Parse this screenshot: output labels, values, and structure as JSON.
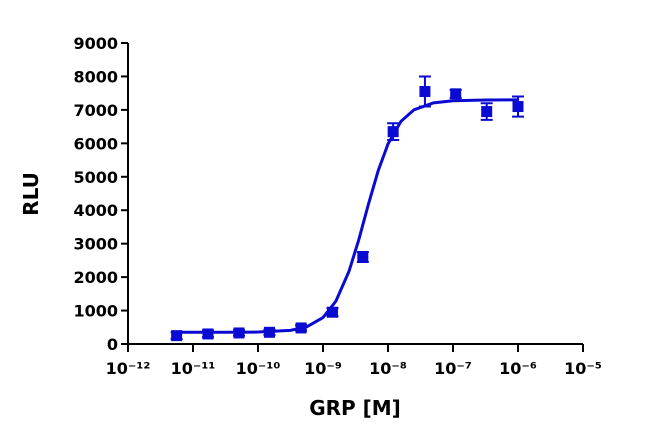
{
  "chart_data": {
    "type": "scatter",
    "x_label": "GRP [M]",
    "y_label": "RLU",
    "log_x": true,
    "color": "#0a0ad2",
    "series": [
      {
        "x": [
          5.6e-12,
          1.7e-11,
          5.1e-11,
          1.5e-10,
          4.6e-10,
          1.4e-09,
          4.1e-09,
          1.2e-08,
          3.7e-08,
          1.1e-07,
          3.3e-07,
          1e-06
        ],
        "values": [
          250,
          300,
          330,
          350,
          480,
          950,
          2600,
          6350,
          7550,
          7480,
          6950,
          7100
        ],
        "errors": [
          100,
          100,
          80,
          80,
          80,
          120,
          150,
          250,
          450,
          120,
          250,
          300
        ]
      }
    ],
    "fit": {
      "x": [
        5.6e-12,
        3.16e-11,
        1e-10,
        3.16e-10,
        5.62e-10,
        1e-09,
        1.58e-09,
        2.51e-09,
        3.55e-09,
        5.01e-09,
        7.08e-09,
        1e-08,
        1.58e-08,
        2.51e-08,
        5.01e-08,
        1e-07,
        3.16e-07,
        1e-06
      ],
      "values": [
        350,
        350,
        357,
        409,
        513,
        790,
        1282,
        2171,
        3116,
        4186,
        5187,
        5980,
        6655,
        7003,
        7211,
        7274,
        7297,
        7299
      ]
    },
    "xlim": [
      1e-12,
      1e-05
    ],
    "xticks": [
      {
        "value": 1e-12,
        "label": "10⁻¹²"
      },
      {
        "value": 1e-11,
        "label": "10⁻¹¹"
      },
      {
        "value": 1e-10,
        "label": "10⁻¹⁰"
      },
      {
        "value": 1e-09,
        "label": "10⁻⁹"
      },
      {
        "value": 1e-08,
        "label": "10⁻⁸"
      },
      {
        "value": 1e-07,
        "label": "10⁻⁷"
      },
      {
        "value": 1e-06,
        "label": "10⁻⁶"
      },
      {
        "value": 1e-05,
        "label": "10⁻⁵"
      }
    ],
    "ylim": [
      0,
      9000
    ],
    "yticks": [
      0,
      1000,
      2000,
      3000,
      4000,
      5000,
      6000,
      7000,
      8000,
      9000
    ]
  }
}
